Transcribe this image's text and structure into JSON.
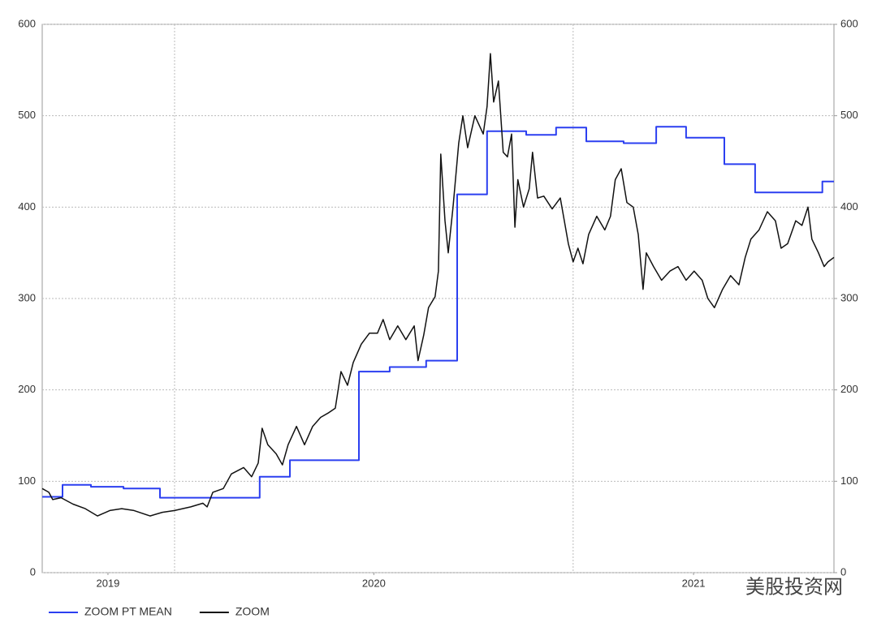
{
  "chart_data": {
    "type": "line",
    "xlim": [
      2019.3,
      2021.95
    ],
    "xticks": [
      {
        "value": 2019.52,
        "label": "2019"
      },
      {
        "value": 2020.41,
        "label": "2020"
      },
      {
        "value": 2021.48,
        "label": "2021"
      }
    ],
    "xgrid": [
      2019.743,
      2021.077
    ],
    "ylim": [
      0,
      600
    ],
    "yticks": [
      0,
      100,
      200,
      300,
      400,
      500,
      600
    ],
    "y2lim": [
      0,
      600
    ],
    "y2ticks": [
      0,
      100,
      200,
      300,
      400,
      500,
      600
    ],
    "grid": true,
    "legend": "bottom-left",
    "watermark": "美股投资网",
    "series": [
      {
        "name": "ZOOM PT MEAN",
        "color": "#2b3ff0",
        "x": [
          2019.3,
          2019.368,
          2019.368,
          2019.463,
          2019.463,
          2019.572,
          2019.572,
          2019.694,
          2019.694,
          2020.028,
          2020.028,
          2020.129,
          2020.129,
          2020.36,
          2020.36,
          2020.463,
          2020.463,
          2020.585,
          2020.585,
          2020.689,
          2020.689,
          2020.789,
          2020.789,
          2020.92,
          2020.92,
          2021.02,
          2021.02,
          2021.121,
          2021.121,
          2021.246,
          2021.246,
          2021.355,
          2021.355,
          2021.455,
          2021.455,
          2021.583,
          2021.583,
          2021.686,
          2021.686,
          2021.911,
          2021.911,
          2021.95
        ],
        "values": [
          83,
          83,
          96,
          96,
          94,
          94,
          92,
          92,
          82,
          82,
          105,
          105,
          123,
          123,
          220,
          220,
          225,
          225,
          232,
          232,
          414,
          414,
          483,
          483,
          479,
          479,
          487,
          487,
          472,
          472,
          470,
          470,
          488,
          488,
          476,
          476,
          447,
          447,
          416,
          416,
          428,
          428
        ]
      },
      {
        "name": "ZOOM",
        "color": "#111111",
        "x": [
          2019.3,
          2019.322,
          2019.335,
          2019.363,
          2019.403,
          2019.444,
          2019.485,
          2019.526,
          2019.566,
          2019.607,
          2019.661,
          2019.702,
          2019.743,
          2019.797,
          2019.838,
          2019.852,
          2019.871,
          2019.906,
          2019.933,
          2019.974,
          2020.001,
          2020.023,
          2020.036,
          2020.055,
          2020.083,
          2020.104,
          2020.123,
          2020.151,
          2020.178,
          2020.205,
          2020.232,
          2020.259,
          2020.281,
          2020.3,
          2020.322,
          2020.341,
          2020.368,
          2020.395,
          2020.422,
          2020.441,
          2020.463,
          2020.49,
          2020.517,
          2020.545,
          2020.558,
          2020.577,
          2020.593,
          2020.615,
          2020.626,
          2020.634,
          2020.648,
          2020.659,
          2020.675,
          2020.694,
          2020.708,
          2020.724,
          2020.748,
          2020.776,
          2020.789,
          2020.8,
          2020.811,
          2020.827,
          2020.843,
          2020.857,
          2020.871,
          2020.882,
          2020.892,
          2020.911,
          2020.93,
          2020.941,
          2020.958,
          2020.979,
          2021.007,
          2021.034,
          2021.061,
          2021.077,
          2021.093,
          2021.11,
          2021.129,
          2021.156,
          2021.183,
          2021.202,
          2021.218,
          2021.238,
          2021.257,
          2021.278,
          2021.295,
          2021.311,
          2021.322,
          2021.346,
          2021.373,
          2021.401,
          2021.428,
          2021.455,
          2021.482,
          2021.509,
          2021.528,
          2021.55,
          2021.577,
          2021.604,
          2021.632,
          2021.653,
          2021.672,
          2021.699,
          2021.727,
          2021.754,
          2021.773,
          2021.795,
          2021.822,
          2021.843,
          2021.863,
          2021.876,
          2021.898,
          2021.917,
          2021.93,
          2021.95
        ],
        "values": [
          92,
          88,
          80,
          82,
          75,
          70,
          62,
          68,
          70,
          68,
          62,
          66,
          68,
          72,
          76,
          72,
          88,
          92,
          108,
          115,
          105,
          120,
          158,
          140,
          130,
          118,
          140,
          160,
          140,
          160,
          170,
          175,
          180,
          220,
          205,
          230,
          250,
          262,
          262,
          277,
          255,
          270,
          255,
          270,
          232,
          260,
          290,
          302,
          330,
          458,
          385,
          350,
          400,
          470,
          500,
          465,
          500,
          480,
          510,
          568,
          515,
          538,
          460,
          455,
          480,
          378,
          430,
          400,
          420,
          460,
          410,
          412,
          398,
          410,
          360,
          340,
          355,
          338,
          370,
          390,
          375,
          390,
          430,
          442,
          405,
          400,
          370,
          310,
          350,
          335,
          320,
          330,
          335,
          320,
          330,
          320,
          300,
          290,
          310,
          325,
          315,
          345,
          365,
          375,
          395,
          385,
          355,
          360,
          385,
          380,
          400,
          365,
          350,
          335,
          340,
          345
        ]
      }
    ]
  }
}
